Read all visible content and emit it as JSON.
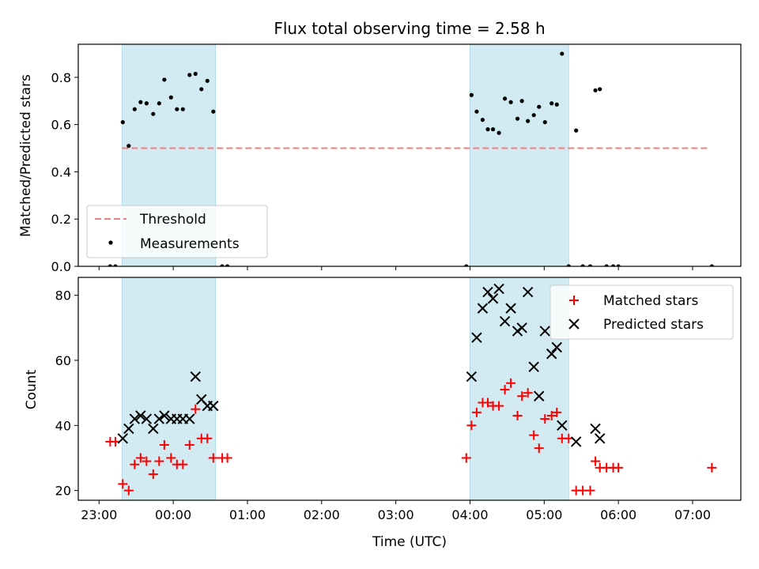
{
  "chart_data": [
    {
      "type": "scatter",
      "title": "Flux total observing time = 2.58 h",
      "ylabel": "Matched/Predicted stars",
      "xlabel": "",
      "x_unit": "hours since 23:00 UTC",
      "xlim": [
        -0.28,
        8.65
      ],
      "ylim": [
        0,
        0.94
      ],
      "yticks": [
        "0.0",
        "0.2",
        "0.4",
        "0.6",
        "0.8"
      ],
      "ytick_values": [
        0,
        0.2,
        0.4,
        0.6,
        0.8
      ],
      "xtick_values": [
        0,
        1,
        2,
        3,
        4,
        5,
        6,
        7,
        8
      ],
      "grid": false,
      "legend_position": "lower-left",
      "shaded_intervals": [
        [
          0.31,
          1.57
        ],
        [
          5.0,
          6.33
        ]
      ],
      "shade_color": "#add8e6",
      "series": [
        {
          "name": "Threshold",
          "style": "dashed-line",
          "color": "#f08080",
          "x": [
            0.31,
            8.2
          ],
          "y": [
            0.5,
            0.5
          ]
        },
        {
          "name": "Measurements",
          "style": "dot",
          "color": "#000000",
          "points": [
            [
              0.15,
              0
            ],
            [
              0.22,
              0
            ],
            [
              0.32,
              0.61
            ],
            [
              0.4,
              0.51
            ],
            [
              0.48,
              0.665
            ],
            [
              0.56,
              0.695
            ],
            [
              0.64,
              0.69
            ],
            [
              0.73,
              0.645
            ],
            [
              0.81,
              0.69
            ],
            [
              0.88,
              0.79
            ],
            [
              0.97,
              0.715
            ],
            [
              1.05,
              0.665
            ],
            [
              1.13,
              0.665
            ],
            [
              1.22,
              0.81
            ],
            [
              1.3,
              0.815
            ],
            [
              1.38,
              0.75
            ],
            [
              1.46,
              0.785
            ],
            [
              1.54,
              0.655
            ],
            [
              1.66,
              0
            ],
            [
              1.73,
              0
            ],
            [
              4.95,
              0
            ],
            [
              5.02,
              0.725
            ],
            [
              5.09,
              0.655
            ],
            [
              5.17,
              0.62
            ],
            [
              5.24,
              0.58
            ],
            [
              5.31,
              0.58
            ],
            [
              5.39,
              0.565
            ],
            [
              5.47,
              0.71
            ],
            [
              5.55,
              0.695
            ],
            [
              5.64,
              0.625
            ],
            [
              5.7,
              0.7
            ],
            [
              5.78,
              0.615
            ],
            [
              5.86,
              0.64
            ],
            [
              5.93,
              0.675
            ],
            [
              6.01,
              0.61
            ],
            [
              6.1,
              0.69
            ],
            [
              6.17,
              0.685
            ],
            [
              6.24,
              0.9
            ],
            [
              6.33,
              0
            ],
            [
              6.43,
              0.575
            ],
            [
              6.52,
              0
            ],
            [
              6.62,
              0
            ],
            [
              6.69,
              0.745
            ],
            [
              6.75,
              0.75
            ],
            [
              6.84,
              0
            ],
            [
              6.93,
              0
            ],
            [
              7.0,
              0
            ],
            [
              8.26,
              0
            ]
          ]
        }
      ]
    },
    {
      "type": "scatter",
      "title": "",
      "ylabel": "Count",
      "xlabel": "Time (UTC)",
      "x_unit": "hours since 23:00 UTC",
      "xlim": [
        -0.28,
        8.65
      ],
      "ylim": [
        17,
        85.5
      ],
      "yticks": [
        "20",
        "40",
        "60",
        "80"
      ],
      "ytick_values": [
        20,
        40,
        60,
        80
      ],
      "xticks": [
        "23:00",
        "00:00",
        "01:00",
        "02:00",
        "03:00",
        "04:00",
        "05:00",
        "06:00",
        "07:00"
      ],
      "xtick_values": [
        0,
        1,
        2,
        3,
        4,
        5,
        6,
        7,
        8
      ],
      "grid": false,
      "legend_position": "top-right",
      "shaded_intervals": [
        [
          0.31,
          1.57
        ],
        [
          5.0,
          6.33
        ]
      ],
      "shade_color": "#add8e6",
      "series": [
        {
          "name": "Matched stars",
          "marker": "plus",
          "color": "#ff0000",
          "points": [
            [
              0.15,
              35
            ],
            [
              0.22,
              35
            ],
            [
              0.32,
              22
            ],
            [
              0.4,
              20
            ],
            [
              0.48,
              28
            ],
            [
              0.56,
              30
            ],
            [
              0.64,
              29
            ],
            [
              0.73,
              25
            ],
            [
              0.81,
              29
            ],
            [
              0.88,
              34
            ],
            [
              0.97,
              30
            ],
            [
              1.05,
              28
            ],
            [
              1.13,
              28
            ],
            [
              1.22,
              34
            ],
            [
              1.3,
              45
            ],
            [
              1.38,
              36
            ],
            [
              1.46,
              36
            ],
            [
              1.54,
              30
            ],
            [
              1.66,
              30
            ],
            [
              1.73,
              30
            ],
            [
              4.95,
              30
            ],
            [
              5.02,
              40
            ],
            [
              5.09,
              44
            ],
            [
              5.17,
              47
            ],
            [
              5.24,
              47
            ],
            [
              5.31,
              46
            ],
            [
              5.39,
              46
            ],
            [
              5.47,
              51
            ],
            [
              5.55,
              53
            ],
            [
              5.64,
              43
            ],
            [
              5.7,
              49
            ],
            [
              5.78,
              50
            ],
            [
              5.86,
              37
            ],
            [
              5.93,
              33
            ],
            [
              6.01,
              42
            ],
            [
              6.1,
              43
            ],
            [
              6.17,
              44
            ],
            [
              6.24,
              36
            ],
            [
              6.33,
              36
            ],
            [
              6.43,
              20
            ],
            [
              6.52,
              20
            ],
            [
              6.62,
              20
            ],
            [
              6.69,
              29
            ],
            [
              6.75,
              27
            ],
            [
              6.84,
              27
            ],
            [
              6.93,
              27
            ],
            [
              7.0,
              27
            ],
            [
              8.26,
              27
            ]
          ]
        },
        {
          "name": "Predicted stars",
          "marker": "x",
          "color": "#000000",
          "points": [
            [
              0.32,
              36
            ],
            [
              0.4,
              39
            ],
            [
              0.48,
              42
            ],
            [
              0.56,
              43
            ],
            [
              0.64,
              42
            ],
            [
              0.73,
              39
            ],
            [
              0.81,
              42
            ],
            [
              0.88,
              43
            ],
            [
              0.97,
              42
            ],
            [
              1.05,
              42
            ],
            [
              1.13,
              42
            ],
            [
              1.22,
              42
            ],
            [
              1.3,
              55
            ],
            [
              1.38,
              48
            ],
            [
              1.46,
              46
            ],
            [
              1.54,
              46
            ],
            [
              5.02,
              55
            ],
            [
              5.09,
              67
            ],
            [
              5.17,
              76
            ],
            [
              5.24,
              81
            ],
            [
              5.31,
              79
            ],
            [
              5.39,
              82
            ],
            [
              5.47,
              72
            ],
            [
              5.55,
              76
            ],
            [
              5.64,
              69
            ],
            [
              5.7,
              70
            ],
            [
              5.78,
              81
            ],
            [
              5.86,
              58
            ],
            [
              5.93,
              49
            ],
            [
              6.01,
              69
            ],
            [
              6.1,
              62
            ],
            [
              6.17,
              64
            ],
            [
              6.24,
              40
            ],
            [
              6.43,
              35
            ],
            [
              6.69,
              39
            ],
            [
              6.75,
              36
            ]
          ]
        }
      ]
    }
  ]
}
